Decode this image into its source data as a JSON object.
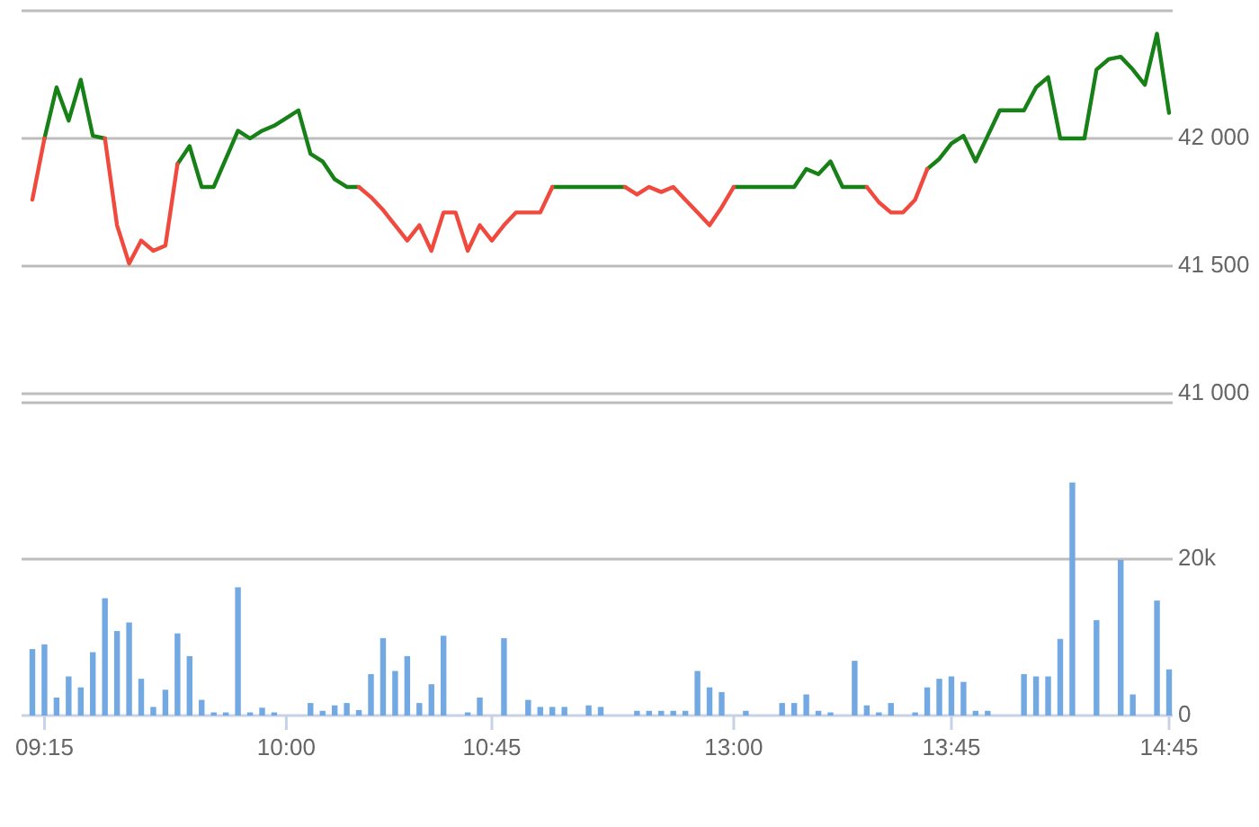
{
  "chart_data": [
    {
      "type": "line",
      "categories": [
        null,
        null,
        null,
        null,
        null,
        null,
        null,
        null,
        null,
        null,
        null,
        null,
        null,
        null,
        null,
        null,
        null,
        null,
        null,
        null,
        null,
        null,
        null,
        null,
        null,
        null,
        null,
        null,
        null,
        null,
        null,
        null,
        null,
        null,
        null,
        null,
        null,
        null,
        null,
        null,
        null,
        null,
        null,
        null,
        null,
        null,
        null,
        null,
        null,
        null,
        null,
        null,
        null,
        null,
        null,
        null,
        null,
        null,
        null,
        null,
        null,
        null,
        null,
        null,
        null,
        null,
        null,
        null,
        null,
        null,
        null,
        null,
        null,
        null,
        null,
        null,
        null,
        null,
        null,
        null,
        null,
        null,
        null,
        null,
        null,
        null,
        null,
        null,
        null,
        null,
        null,
        null,
        null,
        null,
        null
      ],
      "series": [
        {
          "color": "#178017",
          "values": [
            null,
            42000,
            42200,
            42070,
            42230,
            42010,
            42000,
            null,
            null,
            null,
            null,
            null,
            41900,
            41970,
            41810,
            41810,
            41920,
            42030,
            42000,
            42030,
            42050,
            42080,
            42110,
            41940,
            41910,
            41840,
            41810,
            41810,
            null,
            null,
            null,
            null,
            null,
            null,
            null,
            null,
            null,
            null,
            null,
            null,
            null,
            null,
            null,
            41810,
            41810,
            41810,
            41810,
            41810,
            41810,
            41810,
            null,
            null,
            null,
            null,
            null,
            null,
            null,
            null,
            41810,
            41810,
            41810,
            41810,
            41810,
            41810,
            41880,
            41860,
            41910,
            41810,
            41810,
            41810,
            null,
            null,
            null,
            null,
            41880,
            41920,
            41980,
            42010,
            41910,
            42010,
            42110,
            42110,
            42110,
            42200,
            42240,
            42000,
            42000,
            42000,
            42270,
            42310,
            42320,
            42270,
            42210,
            42410,
            42100
          ]
        },
        {
          "color": "#f04a3e",
          "values": [
            41760,
            42000,
            null,
            null,
            null,
            null,
            42000,
            41660,
            41510,
            41600,
            41560,
            41580,
            41900,
            null,
            null,
            null,
            null,
            null,
            null,
            null,
            null,
            null,
            null,
            null,
            null,
            null,
            null,
            41810,
            41770,
            41720,
            41660,
            41600,
            41660,
            41560,
            41710,
            41710,
            41560,
            41660,
            41600,
            41660,
            41710,
            41710,
            41710,
            41810,
            null,
            null,
            null,
            null,
            null,
            41810,
            41780,
            41810,
            41790,
            41810,
            41760,
            41710,
            41660,
            41730,
            41810,
            null,
            null,
            null,
            null,
            null,
            null,
            null,
            null,
            null,
            null,
            41810,
            41750,
            41710,
            41710,
            41760,
            41880,
            null,
            null,
            null,
            null,
            null,
            null,
            null,
            null,
            null,
            null,
            null,
            null,
            null,
            null,
            null,
            null,
            null,
            null,
            null,
            null
          ]
        }
      ],
      "ylim": [
        41000,
        42500
      ],
      "yticks": [
        {
          "value": 41000,
          "label": "41 000"
        },
        {
          "value": 41500,
          "label": "41 500"
        },
        {
          "value": 42000,
          "label": "42 000"
        },
        {
          "value": 42500,
          "label": null
        }
      ],
      "grid": "y",
      "tick_labels": "y"
    },
    {
      "type": "bar",
      "categories": [
        null,
        "09:15",
        null,
        null,
        null,
        null,
        null,
        null,
        null,
        null,
        null,
        null,
        null,
        null,
        null,
        null,
        null,
        null,
        null,
        null,
        null,
        "10:00",
        null,
        null,
        null,
        null,
        null,
        null,
        null,
        null,
        null,
        null,
        null,
        null,
        null,
        null,
        null,
        null,
        "10:45",
        null,
        null,
        null,
        null,
        null,
        null,
        null,
        null,
        null,
        null,
        null,
        null,
        null,
        null,
        null,
        null,
        null,
        null,
        null,
        "13:00",
        null,
        null,
        null,
        null,
        null,
        null,
        null,
        null,
        null,
        null,
        null,
        null,
        null,
        null,
        null,
        null,
        null,
        "13:45",
        null,
        null,
        null,
        null,
        null,
        null,
        null,
        null,
        null,
        null,
        null,
        null,
        null,
        null,
        null,
        null,
        null,
        "14:45"
      ],
      "color": "#72a9e3",
      "values": [
        8500,
        9100,
        2300,
        5000,
        3600,
        8100,
        15000,
        10800,
        11900,
        4700,
        1100,
        3300,
        10500,
        7600,
        2000,
        400,
        400,
        16400,
        400,
        1000,
        400,
        null,
        null,
        1600,
        600,
        1300,
        1600,
        700,
        5300,
        9900,
        5700,
        7600,
        1600,
        4000,
        10200,
        null,
        400,
        2300,
        null,
        9900,
        null,
        2000,
        1100,
        1100,
        1100,
        null,
        1300,
        1100,
        null,
        null,
        600,
        600,
        600,
        600,
        600,
        5700,
        3600,
        3000,
        null,
        600,
        null,
        null,
        1600,
        1600,
        2700,
        600,
        400,
        null,
        7000,
        1300,
        400,
        1600,
        null,
        400,
        3600,
        4700,
        5000,
        4300,
        600,
        600,
        null,
        null,
        5300,
        5000,
        5000,
        9800,
        29800,
        null,
        12200,
        null,
        19900,
        2700,
        null,
        14700,
        5900
      ],
      "ylim": [
        0,
        40000
      ],
      "yticks": [
        0,
        {
          "value": 20000,
          "label": "20k"
        },
        {
          "value": 40000,
          "label": null
        }
      ],
      "grid": "y"
    }
  ]
}
